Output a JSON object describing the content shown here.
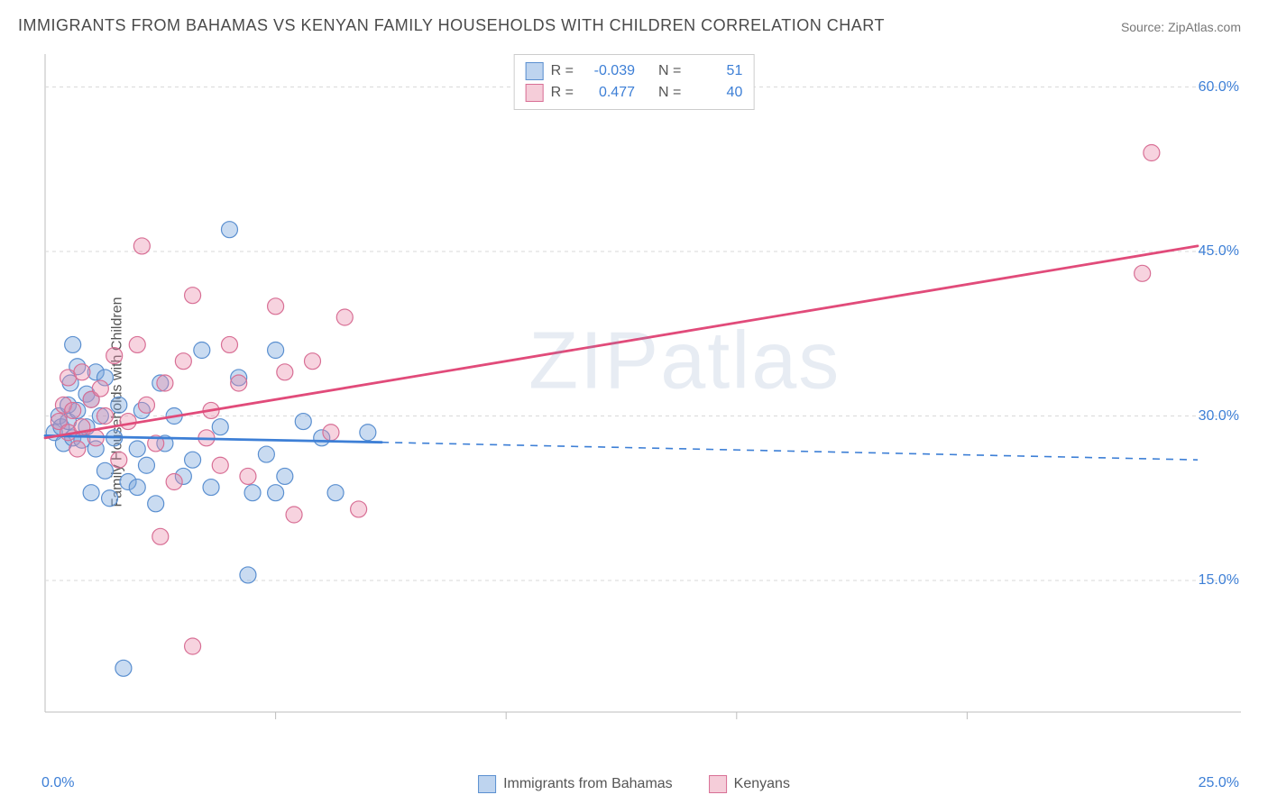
{
  "title": "IMMIGRANTS FROM BAHAMAS VS KENYAN FAMILY HOUSEHOLDS WITH CHILDREN CORRELATION CHART",
  "source_label": "Source: ZipAtlas.com",
  "ylabel": "Family Households with Children",
  "watermark": "ZIPatlas",
  "chart": {
    "type": "scatter",
    "x_min": 0.0,
    "x_max": 25.0,
    "y_min": 3.0,
    "y_max": 63.0,
    "x_tick_min": "0.0%",
    "x_tick_max": "25.0%",
    "y_ticks": [
      {
        "value": 15.0,
        "label": "15.0%"
      },
      {
        "value": 30.0,
        "label": "30.0%"
      },
      {
        "value": 45.0,
        "label": "45.0%"
      },
      {
        "value": 60.0,
        "label": "60.0%"
      }
    ],
    "grid_color": "#d9d9d9",
    "axis_color": "#bdbdbd",
    "background_color": "#ffffff",
    "point_radius": 9,
    "point_stroke_width": 1.2,
    "series": [
      {
        "name": "Immigrants from Bahamas",
        "fill": "rgba(120,165,220,0.40)",
        "stroke": "#5a8fd0",
        "R": "-0.039",
        "N": "51",
        "trend": {
          "solid_from": [
            0.0,
            28.2
          ],
          "solid_to": [
            7.3,
            27.6
          ],
          "dash_from": [
            7.3,
            27.6
          ],
          "dash_to": [
            25.0,
            26.0
          ],
          "color": "#3d7fd6",
          "width": 2.8
        },
        "points": [
          [
            0.2,
            28.5
          ],
          [
            0.3,
            30.0
          ],
          [
            0.35,
            29.0
          ],
          [
            0.4,
            27.5
          ],
          [
            0.5,
            31.0
          ],
          [
            0.5,
            29.5
          ],
          [
            0.55,
            33.0
          ],
          [
            0.6,
            28.0
          ],
          [
            0.6,
            36.5
          ],
          [
            0.7,
            30.5
          ],
          [
            0.7,
            34.5
          ],
          [
            0.8,
            27.8
          ],
          [
            0.9,
            32.0
          ],
          [
            0.9,
            29.0
          ],
          [
            1.0,
            23.0
          ],
          [
            1.0,
            31.5
          ],
          [
            1.1,
            34.0
          ],
          [
            1.1,
            27.0
          ],
          [
            1.2,
            30.0
          ],
          [
            1.3,
            25.0
          ],
          [
            1.3,
            33.5
          ],
          [
            1.4,
            22.5
          ],
          [
            1.5,
            28.0
          ],
          [
            1.6,
            31.0
          ],
          [
            1.7,
            7.0
          ],
          [
            1.8,
            24.0
          ],
          [
            2.0,
            27.0
          ],
          [
            2.0,
            23.5
          ],
          [
            2.1,
            30.5
          ],
          [
            2.2,
            25.5
          ],
          [
            2.4,
            22.0
          ],
          [
            2.5,
            33.0
          ],
          [
            2.6,
            27.5
          ],
          [
            2.8,
            30.0
          ],
          [
            3.0,
            24.5
          ],
          [
            3.2,
            26.0
          ],
          [
            3.4,
            36.0
          ],
          [
            3.6,
            23.5
          ],
          [
            3.8,
            29.0
          ],
          [
            4.0,
            47.0
          ],
          [
            4.2,
            33.5
          ],
          [
            4.4,
            15.5
          ],
          [
            4.5,
            23.0
          ],
          [
            4.8,
            26.5
          ],
          [
            5.0,
            23.0
          ],
          [
            5.0,
            36.0
          ],
          [
            5.2,
            24.5
          ],
          [
            5.6,
            29.5
          ],
          [
            6.0,
            28.0
          ],
          [
            6.3,
            23.0
          ],
          [
            7.0,
            28.5
          ]
        ]
      },
      {
        "name": "Kenyans",
        "fill": "rgba(235,140,170,0.38)",
        "stroke": "#d86f95",
        "R": "0.477",
        "N": "40",
        "trend": {
          "solid_from": [
            0.0,
            28.0
          ],
          "solid_to": [
            25.0,
            45.5
          ],
          "color": "#e14b7a",
          "width": 2.8
        },
        "points": [
          [
            0.3,
            29.5
          ],
          [
            0.4,
            31.0
          ],
          [
            0.5,
            28.5
          ],
          [
            0.5,
            33.5
          ],
          [
            0.6,
            30.5
          ],
          [
            0.7,
            27.0
          ],
          [
            0.8,
            29.0
          ],
          [
            0.8,
            34.0
          ],
          [
            1.0,
            31.5
          ],
          [
            1.1,
            28.0
          ],
          [
            1.2,
            32.5
          ],
          [
            1.3,
            30.0
          ],
          [
            1.5,
            35.5
          ],
          [
            1.6,
            26.0
          ],
          [
            1.8,
            29.5
          ],
          [
            2.0,
            36.5
          ],
          [
            2.1,
            45.5
          ],
          [
            2.2,
            31.0
          ],
          [
            2.4,
            27.5
          ],
          [
            2.5,
            19.0
          ],
          [
            2.6,
            33.0
          ],
          [
            2.8,
            24.0
          ],
          [
            3.0,
            35.0
          ],
          [
            3.2,
            41.0
          ],
          [
            3.2,
            9.0
          ],
          [
            3.5,
            28.0
          ],
          [
            3.6,
            30.5
          ],
          [
            3.8,
            25.5
          ],
          [
            4.0,
            36.5
          ],
          [
            4.2,
            33.0
          ],
          [
            4.4,
            24.5
          ],
          [
            5.0,
            40.0
          ],
          [
            5.2,
            34.0
          ],
          [
            5.4,
            21.0
          ],
          [
            5.8,
            35.0
          ],
          [
            6.2,
            28.5
          ],
          [
            6.5,
            39.0
          ],
          [
            6.8,
            21.5
          ],
          [
            24.0,
            54.0
          ],
          [
            23.8,
            43.0
          ]
        ]
      }
    ]
  },
  "stats_legend": {
    "rows": [
      {
        "swatch": "blue",
        "r_label": "R =",
        "r_val": "-0.039",
        "n_label": "N =",
        "n_val": "51"
      },
      {
        "swatch": "pink",
        "r_label": "R =",
        "r_val": "0.477",
        "n_label": "N =",
        "n_val": "40"
      }
    ]
  },
  "bottom_legend": [
    {
      "swatch": "blue",
      "label": "Immigrants from Bahamas"
    },
    {
      "swatch": "pink",
      "label": "Kenyans"
    }
  ]
}
